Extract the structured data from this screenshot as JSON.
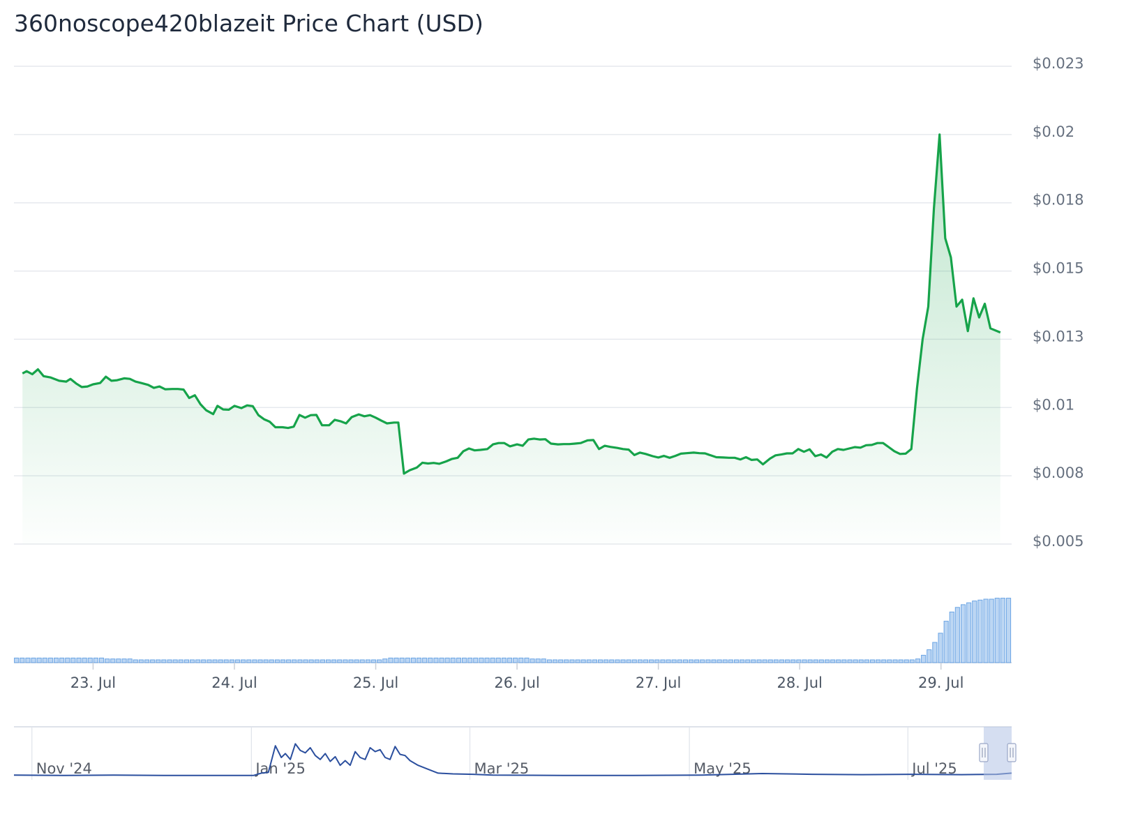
{
  "title": "360noscope420blazeit Price Chart (USD)",
  "colors": {
    "price_line": "#16a34a",
    "price_area_top": "#16a34a",
    "volume_fill": "#bcd6f3",
    "volume_stroke": "#6aa4e4",
    "navigator_line": "#2b4f9e",
    "navigator_handle": "#a8b6dc",
    "grid": "#e6e9ee",
    "tick_text": "#66707f"
  },
  "chart_data": {
    "type": "line",
    "title": "360noscope420blazeit Price Chart (USD)",
    "xlabel": "",
    "ylabel": "",
    "y_ticks": [
      "$0.023",
      "$0.02",
      "$0.018",
      "$0.015",
      "$0.013",
      "$0.01",
      "$0.008",
      "$0.005"
    ],
    "y_tick_values": [
      0.023,
      0.0205,
      0.018,
      0.0155,
      0.013,
      0.0105,
      0.008,
      0.0055
    ],
    "ylim": [
      0.0055,
      0.023
    ],
    "x_ticks": [
      "23. Jul",
      "24. Jul",
      "25. Jul",
      "26. Jul",
      "27. Jul",
      "28. Jul",
      "29. Jul"
    ],
    "x_tick_values": [
      0.5,
      1.5,
      2.5,
      3.5,
      4.5,
      5.5,
      6.5
    ],
    "xlim": [
      -0.06,
      7.0
    ],
    "grid": true,
    "legend": "none",
    "price": [
      [
        0.0,
        0.01175
      ],
      [
        0.03,
        0.01183
      ],
      [
        0.07,
        0.01172
      ],
      [
        0.11,
        0.0119
      ],
      [
        0.15,
        0.01165
      ],
      [
        0.2,
        0.0116
      ],
      [
        0.26,
        0.01148
      ],
      [
        0.31,
        0.01145
      ],
      [
        0.34,
        0.01155
      ],
      [
        0.38,
        0.01138
      ],
      [
        0.42,
        0.01125
      ],
      [
        0.46,
        0.01127
      ],
      [
        0.5,
        0.01135
      ],
      [
        0.55,
        0.0114
      ],
      [
        0.59,
        0.01163
      ],
      [
        0.63,
        0.01148
      ],
      [
        0.67,
        0.0115
      ],
      [
        0.72,
        0.01157
      ],
      [
        0.76,
        0.01155
      ],
      [
        0.8,
        0.01145
      ],
      [
        0.84,
        0.0114
      ],
      [
        0.89,
        0.01133
      ],
      [
        0.93,
        0.01122
      ],
      [
        0.97,
        0.01127
      ],
      [
        1.01,
        0.01117
      ],
      [
        1.06,
        0.01118
      ],
      [
        1.1,
        0.01118
      ],
      [
        1.14,
        0.01116
      ],
      [
        1.18,
        0.01085
      ],
      [
        1.22,
        0.01095
      ],
      [
        1.26,
        0.01062
      ],
      [
        1.3,
        0.0104
      ],
      [
        1.35,
        0.01026
      ],
      [
        1.38,
        0.01056
      ],
      [
        1.42,
        0.01043
      ],
      [
        1.46,
        0.01042
      ],
      [
        1.5,
        0.01056
      ],
      [
        1.55,
        0.01048
      ],
      [
        1.59,
        0.01058
      ],
      [
        1.63,
        0.01055
      ],
      [
        1.67,
        0.01022
      ],
      [
        1.71,
        0.01007
      ],
      [
        1.75,
        0.00998
      ],
      [
        1.79,
        0.00978
      ],
      [
        1.84,
        0.00978
      ],
      [
        1.88,
        0.00975
      ],
      [
        1.92,
        0.0098
      ],
      [
        1.96,
        0.01023
      ],
      [
        2.0,
        0.01013
      ],
      [
        2.04,
        0.01022
      ],
      [
        2.08,
        0.01023
      ],
      [
        2.12,
        0.00985
      ],
      [
        2.17,
        0.00985
      ],
      [
        2.21,
        0.01005
      ],
      [
        2.25,
        0.01
      ],
      [
        2.29,
        0.00992
      ],
      [
        2.33,
        0.01015
      ],
      [
        2.38,
        0.01025
      ],
      [
        2.42,
        0.01018
      ],
      [
        2.46,
        0.01022
      ],
      [
        2.5,
        0.01013
      ],
      [
        2.54,
        0.01002
      ],
      [
        2.58,
        0.00992
      ],
      [
        2.63,
        0.00995
      ],
      [
        2.66,
        0.00995
      ],
      [
        2.7,
        0.00808
      ],
      [
        2.74,
        0.0082
      ],
      [
        2.79,
        0.0083
      ],
      [
        2.83,
        0.00848
      ],
      [
        2.87,
        0.00845
      ],
      [
        2.91,
        0.00847
      ],
      [
        2.95,
        0.00844
      ],
      [
        3.0,
        0.00853
      ],
      [
        3.04,
        0.00862
      ],
      [
        3.08,
        0.00866
      ],
      [
        3.12,
        0.0089
      ],
      [
        3.16,
        0.009
      ],
      [
        3.2,
        0.00893
      ],
      [
        3.24,
        0.00895
      ],
      [
        3.29,
        0.00898
      ],
      [
        3.33,
        0.00915
      ],
      [
        3.37,
        0.0092
      ],
      [
        3.41,
        0.0092
      ],
      [
        3.45,
        0.00908
      ],
      [
        3.5,
        0.00915
      ],
      [
        3.54,
        0.0091
      ],
      [
        3.58,
        0.00933
      ],
      [
        3.62,
        0.00936
      ],
      [
        3.66,
        0.00933
      ],
      [
        3.7,
        0.00934
      ],
      [
        3.74,
        0.00918
      ],
      [
        3.79,
        0.00915
      ],
      [
        3.83,
        0.00916
      ],
      [
        3.87,
        0.00916
      ],
      [
        3.91,
        0.00918
      ],
      [
        3.95,
        0.0092
      ],
      [
        4.0,
        0.0093
      ],
      [
        4.04,
        0.00931
      ],
      [
        4.08,
        0.00898
      ],
      [
        4.12,
        0.0091
      ],
      [
        4.16,
        0.00906
      ],
      [
        4.21,
        0.00902
      ],
      [
        4.25,
        0.00898
      ],
      [
        4.29,
        0.00896
      ],
      [
        4.33,
        0.00876
      ],
      [
        4.37,
        0.00885
      ],
      [
        4.41,
        0.0088
      ],
      [
        4.46,
        0.00872
      ],
      [
        4.5,
        0.00867
      ],
      [
        4.54,
        0.00873
      ],
      [
        4.58,
        0.00866
      ],
      [
        4.62,
        0.00873
      ],
      [
        4.66,
        0.00881
      ],
      [
        4.7,
        0.00883
      ],
      [
        4.75,
        0.00885
      ],
      [
        4.79,
        0.00883
      ],
      [
        4.83,
        0.00882
      ],
      [
        4.87,
        0.00875
      ],
      [
        4.91,
        0.00868
      ],
      [
        4.96,
        0.00867
      ],
      [
        5.0,
        0.00866
      ],
      [
        5.04,
        0.00866
      ],
      [
        5.08,
        0.0086
      ],
      [
        5.12,
        0.00868
      ],
      [
        5.16,
        0.00858
      ],
      [
        5.2,
        0.0086
      ],
      [
        5.24,
        0.00842
      ],
      [
        5.29,
        0.00863
      ],
      [
        5.33,
        0.00875
      ],
      [
        5.37,
        0.00878
      ],
      [
        5.41,
        0.00882
      ],
      [
        5.45,
        0.00882
      ],
      [
        5.49,
        0.00898
      ],
      [
        5.53,
        0.00888
      ],
      [
        5.57,
        0.00897
      ],
      [
        5.61,
        0.00872
      ],
      [
        5.65,
        0.00878
      ],
      [
        5.69,
        0.00867
      ],
      [
        5.73,
        0.00888
      ],
      [
        5.77,
        0.00898
      ],
      [
        5.81,
        0.00895
      ],
      [
        5.85,
        0.009
      ],
      [
        5.89,
        0.00905
      ],
      [
        5.93,
        0.00903
      ],
      [
        5.97,
        0.00912
      ],
      [
        6.01,
        0.00913
      ],
      [
        6.05,
        0.0092
      ],
      [
        6.09,
        0.0092
      ],
      [
        6.13,
        0.00905
      ],
      [
        6.17,
        0.0089
      ],
      [
        6.21,
        0.0088
      ],
      [
        6.25,
        0.00881
      ],
      [
        6.29,
        0.00898
      ],
      [
        6.33,
        0.0112
      ],
      [
        6.37,
        0.013
      ],
      [
        6.41,
        0.0142
      ],
      [
        6.45,
        0.0178
      ],
      [
        6.49,
        0.0205
      ],
      [
        6.53,
        0.0167
      ],
      [
        6.57,
        0.016
      ],
      [
        6.61,
        0.0142
      ],
      [
        6.65,
        0.01445
      ],
      [
        6.69,
        0.0133
      ],
      [
        6.73,
        0.0145
      ],
      [
        6.77,
        0.0138
      ],
      [
        6.81,
        0.0143
      ],
      [
        6.85,
        0.0134
      ],
      [
        6.92,
        0.01325
      ]
    ],
    "volume": [
      0.005,
      0.005,
      0.005,
      0.005,
      0.005,
      0.005,
      0.005,
      0.005,
      0.005,
      0.005,
      0.005,
      0.005,
      0.005,
      0.005,
      0.005,
      0.005,
      0.004,
      0.004,
      0.004,
      0.004,
      0.004,
      0.003,
      0.003,
      0.003,
      0.003,
      0.003,
      0.003,
      0.003,
      0.003,
      0.003,
      0.003,
      0.003,
      0.003,
      0.003,
      0.003,
      0.003,
      0.003,
      0.003,
      0.003,
      0.003,
      0.003,
      0.003,
      0.003,
      0.003,
      0.003,
      0.003,
      0.003,
      0.003,
      0.003,
      0.003,
      0.003,
      0.003,
      0.003,
      0.003,
      0.003,
      0.003,
      0.003,
      0.003,
      0.003,
      0.003,
      0.003,
      0.003,
      0.003,
      0.003,
      0.003,
      0.004,
      0.005,
      0.005,
      0.005,
      0.005,
      0.005,
      0.005,
      0.005,
      0.005,
      0.005,
      0.005,
      0.005,
      0.005,
      0.005,
      0.005,
      0.005,
      0.005,
      0.005,
      0.005,
      0.005,
      0.005,
      0.005,
      0.005,
      0.005,
      0.005,
      0.005,
      0.004,
      0.004,
      0.004,
      0.003,
      0.003,
      0.003,
      0.003,
      0.003,
      0.003,
      0.003,
      0.003,
      0.003,
      0.003,
      0.003,
      0.003,
      0.003,
      0.003,
      0.003,
      0.003,
      0.003,
      0.003,
      0.003,
      0.003,
      0.003,
      0.003,
      0.003,
      0.003,
      0.003,
      0.003,
      0.003,
      0.003,
      0.003,
      0.003,
      0.003,
      0.003,
      0.003,
      0.003,
      0.003,
      0.003,
      0.003,
      0.003,
      0.003,
      0.003,
      0.003,
      0.003,
      0.003,
      0.003,
      0.003,
      0.003,
      0.003,
      0.003,
      0.003,
      0.003,
      0.003,
      0.003,
      0.003,
      0.003,
      0.003,
      0.003,
      0.003,
      0.003,
      0.003,
      0.003,
      0.003,
      0.003,
      0.003,
      0.003,
      0.003,
      0.004,
      0.008,
      0.014,
      0.022,
      0.032,
      0.045,
      0.055,
      0.06,
      0.063,
      0.065,
      0.067,
      0.068,
      0.069,
      0.069,
      0.07,
      0.07,
      0.07
    ],
    "volume_max": 0.072,
    "navigator": {
      "x_ticks": [
        "Nov '24",
        "Jan '25",
        "Mar '25",
        "May '25",
        "Jul '25"
      ],
      "x_tick_positions": [
        0.018,
        0.238,
        0.457,
        0.677,
        0.896
      ],
      "series": [
        [
          0,
          0.05
        ],
        [
          0.05,
          0.04
        ],
        [
          0.1,
          0.05
        ],
        [
          0.15,
          0.04
        ],
        [
          0.2,
          0.04
        ],
        [
          0.24,
          0.04
        ],
        [
          0.248,
          0.1
        ],
        [
          0.255,
          0.12
        ],
        [
          0.262,
          0.8
        ],
        [
          0.268,
          0.5
        ],
        [
          0.272,
          0.6
        ],
        [
          0.277,
          0.45
        ],
        [
          0.282,
          0.85
        ],
        [
          0.287,
          0.68
        ],
        [
          0.292,
          0.62
        ],
        [
          0.297,
          0.75
        ],
        [
          0.302,
          0.55
        ],
        [
          0.307,
          0.45
        ],
        [
          0.312,
          0.6
        ],
        [
          0.317,
          0.4
        ],
        [
          0.322,
          0.52
        ],
        [
          0.327,
          0.3
        ],
        [
          0.332,
          0.42
        ],
        [
          0.337,
          0.3
        ],
        [
          0.342,
          0.65
        ],
        [
          0.347,
          0.5
        ],
        [
          0.352,
          0.45
        ],
        [
          0.357,
          0.75
        ],
        [
          0.362,
          0.65
        ],
        [
          0.367,
          0.7
        ],
        [
          0.372,
          0.5
        ],
        [
          0.377,
          0.45
        ],
        [
          0.382,
          0.78
        ],
        [
          0.387,
          0.58
        ],
        [
          0.392,
          0.55
        ],
        [
          0.397,
          0.42
        ],
        [
          0.405,
          0.3
        ],
        [
          0.415,
          0.2
        ],
        [
          0.425,
          0.1
        ],
        [
          0.44,
          0.08
        ],
        [
          0.46,
          0.07
        ],
        [
          0.48,
          0.05
        ],
        [
          0.55,
          0.04
        ],
        [
          0.62,
          0.04
        ],
        [
          0.69,
          0.05
        ],
        [
          0.75,
          0.09
        ],
        [
          0.8,
          0.07
        ],
        [
          0.85,
          0.06
        ],
        [
          0.9,
          0.07
        ],
        [
          0.95,
          0.06
        ],
        [
          0.985,
          0.07
        ],
        [
          1.0,
          0.1
        ]
      ],
      "window": [
        0.972,
        1.0
      ]
    }
  }
}
